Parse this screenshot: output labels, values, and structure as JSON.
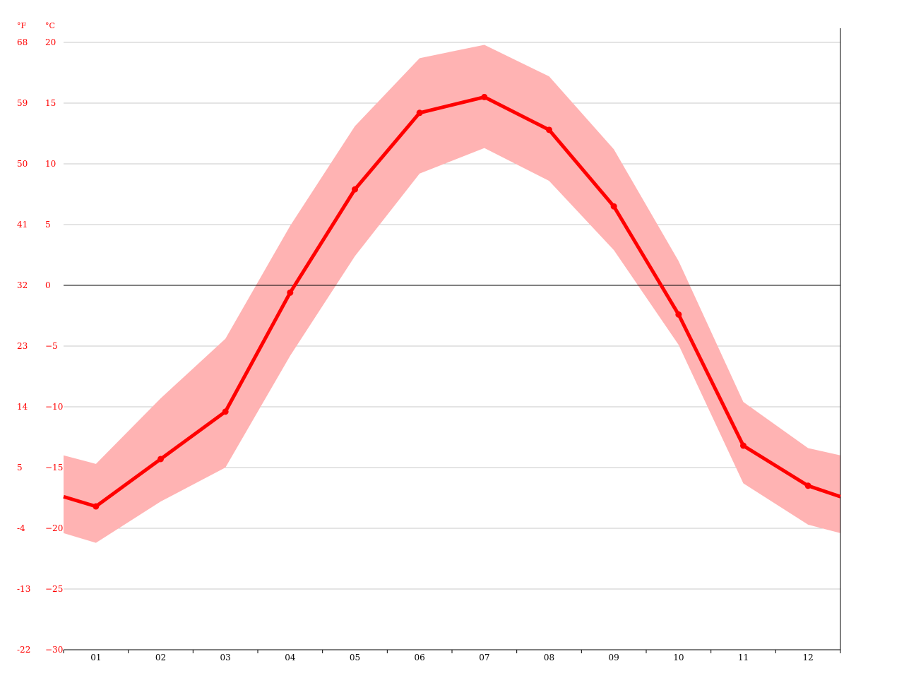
{
  "chart_data": {
    "type": "line",
    "categories": [
      "01",
      "02",
      "03",
      "04",
      "05",
      "06",
      "07",
      "08",
      "09",
      "10",
      "11",
      "12"
    ],
    "series": [
      {
        "values": [
          -18.2,
          -14.3,
          -10.4,
          -0.6,
          7.9,
          14.2,
          15.5,
          12.8,
          6.5,
          -2.4,
          -13.2,
          -16.5
        ]
      }
    ],
    "band": {
      "max": [
        -14.7,
        -9.3,
        -4.4,
        4.9,
        13.1,
        18.7,
        19.8,
        17.2,
        11.2,
        2.0,
        -9.6,
        -13.4
      ],
      "min": [
        -21.2,
        -17.8,
        -15.0,
        -5.8,
        2.4,
        9.2,
        11.3,
        8.6,
        2.9,
        -4.9,
        -16.3,
        -19.7
      ]
    },
    "edge_values": {
      "line": [
        -17.4,
        -17.4
      ],
      "max": [
        -14.0,
        -14.0
      ],
      "min": [
        -20.4,
        -20.4
      ]
    },
    "unit_labels": {
      "fahrenheit": "°F",
      "celsius": "°C"
    },
    "y_ticks_c": [
      "20",
      "15",
      "10",
      "5",
      "0",
      "−5",
      "−10",
      "−15",
      "−20",
      "−25",
      "−30"
    ],
    "y_ticks_f": [
      "68",
      "59",
      "50",
      "41",
      "32",
      "23",
      "14",
      "5",
      "-4",
      "-13",
      "-22"
    ],
    "ylim": [
      -30,
      20
    ],
    "grid": true,
    "colors": {
      "line": "#ff0000",
      "band": "#ffb3b3",
      "grid": "#c8c8c8",
      "zero": "#000000",
      "label": "#ff0000"
    }
  }
}
